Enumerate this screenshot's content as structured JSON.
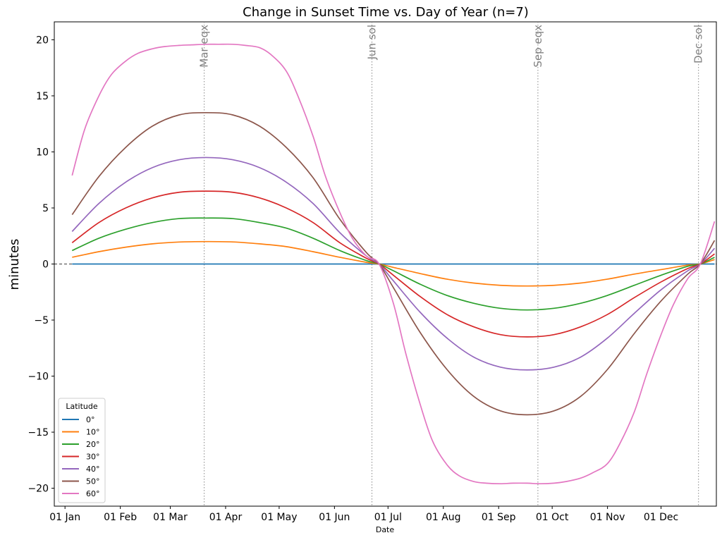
{
  "chart_data": {
    "type": "line",
    "title": "Change in Sunset Time vs. Day of Year (n=7)",
    "xlabel": "Date",
    "ylabel": "minutes",
    "x_domain_days": [
      -6,
      365
    ],
    "ylim": [
      -21.6,
      21.6
    ],
    "x_ticks": [
      {
        "day": 0,
        "label": "01 Jan"
      },
      {
        "day": 31,
        "label": "01 Feb"
      },
      {
        "day": 59,
        "label": "01 Mar"
      },
      {
        "day": 90,
        "label": "01 Apr"
      },
      {
        "day": 120,
        "label": "01 May"
      },
      {
        "day": 151,
        "label": "01 Jun"
      },
      {
        "day": 181,
        "label": "01 Jul"
      },
      {
        "day": 212,
        "label": "01 Aug"
      },
      {
        "day": 243,
        "label": "01 Sep"
      },
      {
        "day": 273,
        "label": "01 Oct"
      },
      {
        "day": 304,
        "label": "01 Nov"
      },
      {
        "day": 334,
        "label": "01 Dec"
      }
    ],
    "y_ticks": [
      {
        "value": 20,
        "label": "20"
      },
      {
        "value": 15,
        "label": "15"
      },
      {
        "value": 10,
        "label": "10"
      },
      {
        "value": 5,
        "label": "5"
      },
      {
        "value": 0,
        "label": "0"
      },
      {
        "value": -5,
        "label": "−5"
      },
      {
        "value": -10,
        "label": "−10"
      },
      {
        "value": -15,
        "label": "−15"
      },
      {
        "value": -20,
        "label": "−20"
      }
    ],
    "events": [
      {
        "label": "Mar eqx",
        "day": 78
      },
      {
        "label": "Jun sol",
        "day": 172
      },
      {
        "label": "Sep eqx",
        "day": 265
      },
      {
        "label": "Dec sol",
        "day": 355
      }
    ],
    "legend": {
      "title": "Latitude",
      "placement": "lower-left"
    },
    "zero_line": {
      "value": 0,
      "style": "dashed"
    },
    "series": [
      {
        "name": "0°",
        "color": "#1f77b4",
        "x": [
          4,
          19,
          34,
          49,
          64,
          79,
          94,
          109,
          124,
          139,
          154,
          169,
          176,
          184,
          199,
          214,
          229,
          244,
          259,
          274,
          289,
          304,
          319,
          334,
          349,
          356,
          364
        ],
        "y": [
          0,
          0,
          0,
          0,
          0,
          0,
          0,
          0,
          0,
          0,
          0,
          0,
          0,
          0,
          0,
          0,
          0,
          0,
          0,
          0,
          0,
          0,
          0,
          0,
          0,
          0,
          0
        ]
      },
      {
        "name": "10°",
        "color": "#ff7f0e",
        "x": [
          4,
          19,
          34,
          49,
          64,
          79,
          94,
          109,
          124,
          139,
          154,
          169,
          176,
          184,
          199,
          214,
          229,
          244,
          259,
          274,
          289,
          304,
          319,
          334,
          349,
          356,
          364
        ],
        "y": [
          0.6,
          1.1,
          1.5,
          1.8,
          1.96,
          2.0,
          1.97,
          1.8,
          1.55,
          1.1,
          0.6,
          0.15,
          0,
          -0.3,
          -0.85,
          -1.35,
          -1.7,
          -1.9,
          -1.96,
          -1.9,
          -1.7,
          -1.35,
          -0.9,
          -0.5,
          -0.1,
          0,
          0.4
        ]
      },
      {
        "name": "20°",
        "color": "#2ca02c",
        "x": [
          4,
          19,
          34,
          49,
          64,
          79,
          94,
          109,
          124,
          139,
          154,
          169,
          176,
          184,
          199,
          214,
          229,
          244,
          259,
          274,
          289,
          304,
          319,
          334,
          349,
          356,
          364
        ],
        "y": [
          1.2,
          2.3,
          3.1,
          3.7,
          4.05,
          4.1,
          4.05,
          3.7,
          3.2,
          2.3,
          1.2,
          0.3,
          0,
          -0.6,
          -1.8,
          -2.8,
          -3.5,
          -3.95,
          -4.1,
          -3.95,
          -3.5,
          -2.8,
          -1.9,
          -1.0,
          -0.2,
          0,
          0.6
        ]
      },
      {
        "name": "30°",
        "color": "#d62728",
        "x": [
          4,
          19,
          34,
          49,
          64,
          79,
          94,
          109,
          124,
          139,
          154,
          169,
          176,
          184,
          199,
          214,
          229,
          244,
          259,
          274,
          289,
          304,
          319,
          334,
          349,
          356,
          364
        ],
        "y": [
          1.9,
          3.7,
          5.0,
          5.9,
          6.4,
          6.5,
          6.4,
          5.9,
          5.0,
          3.7,
          1.9,
          0.5,
          0,
          -1.0,
          -2.9,
          -4.5,
          -5.6,
          -6.3,
          -6.5,
          -6.3,
          -5.6,
          -4.5,
          -3.0,
          -1.6,
          -0.4,
          0,
          0.9
        ]
      },
      {
        "name": "40°",
        "color": "#9467bd",
        "x": [
          4,
          19,
          34,
          49,
          64,
          79,
          94,
          109,
          124,
          139,
          154,
          169,
          176,
          184,
          199,
          214,
          229,
          244,
          259,
          274,
          289,
          304,
          319,
          334,
          349,
          356,
          364
        ],
        "y": [
          2.9,
          5.4,
          7.3,
          8.6,
          9.3,
          9.5,
          9.3,
          8.6,
          7.3,
          5.4,
          2.8,
          0.7,
          0,
          -1.5,
          -4.3,
          -6.6,
          -8.3,
          -9.2,
          -9.45,
          -9.2,
          -8.3,
          -6.6,
          -4.4,
          -2.3,
          -0.6,
          0,
          1.4
        ]
      },
      {
        "name": "50°",
        "color": "#8c564b",
        "x": [
          4,
          19,
          34,
          49,
          64,
          79,
          94,
          109,
          124,
          139,
          154,
          169,
          176,
          184,
          199,
          214,
          229,
          244,
          259,
          274,
          289,
          304,
          319,
          334,
          349,
          356,
          364
        ],
        "y": [
          4.4,
          7.8,
          10.4,
          12.3,
          13.3,
          13.5,
          13.3,
          12.3,
          10.4,
          7.7,
          4.0,
          1.0,
          0,
          -2.1,
          -6.1,
          -9.4,
          -11.8,
          -13.1,
          -13.45,
          -13.1,
          -11.8,
          -9.4,
          -6.2,
          -3.3,
          -0.9,
          0,
          2.1
        ]
      },
      {
        "name": "60°",
        "color": "#e377c2",
        "x": [
          4,
          11,
          19,
          26,
          34,
          41,
          49,
          56,
          64,
          71,
          79,
          86,
          94,
          101,
          109,
          116,
          124,
          131,
          139,
          146,
          154,
          161,
          169,
          176,
          184,
          191,
          199,
          206,
          214,
          221,
          229,
          236,
          244,
          251,
          259,
          266,
          274,
          281,
          289,
          296,
          304,
          311,
          319,
          326,
          334,
          341,
          349,
          356,
          364
        ],
        "y": [
          7.9,
          12.0,
          15.0,
          16.9,
          18.1,
          18.8,
          19.2,
          19.4,
          19.5,
          19.55,
          19.6,
          19.6,
          19.6,
          19.5,
          19.3,
          18.6,
          17.2,
          14.8,
          11.4,
          7.8,
          4.6,
          2.3,
          0.7,
          0,
          -3.5,
          -8.0,
          -12.5,
          -15.8,
          -17.9,
          -18.9,
          -19.4,
          -19.55,
          -19.6,
          -19.55,
          -19.55,
          -19.6,
          -19.55,
          -19.4,
          -19.1,
          -18.6,
          -17.8,
          -16.0,
          -13.2,
          -9.8,
          -6.3,
          -3.6,
          -1.3,
          0,
          3.8
        ]
      }
    ]
  }
}
